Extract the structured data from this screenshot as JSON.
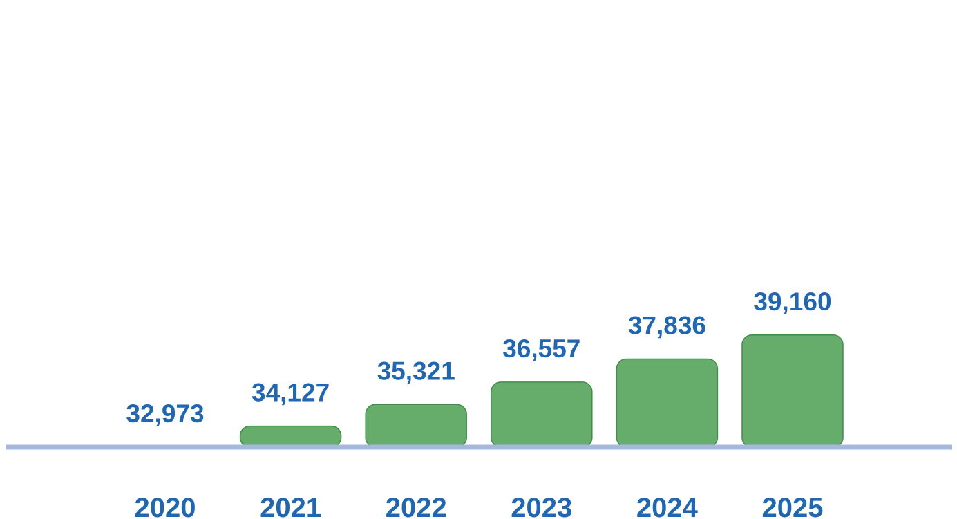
{
  "chart_data": {
    "type": "bar",
    "categories": [
      "2020",
      "2021",
      "2022",
      "2023",
      "2024",
      "2025"
    ],
    "values": [
      32973,
      34127,
      35321,
      36557,
      37836,
      39160
    ],
    "value_labels": [
      "32,973",
      "34,127",
      "35,321",
      "36,557",
      "37,836",
      "39,160"
    ],
    "title": "",
    "xlabel": "",
    "ylabel": "",
    "grid": false,
    "legend": "none",
    "colors": {
      "bar": "#66ad6b",
      "bar_edge": "#3d8f47",
      "label": "#1f66b5",
      "baseline": "#a6b8d9"
    }
  }
}
